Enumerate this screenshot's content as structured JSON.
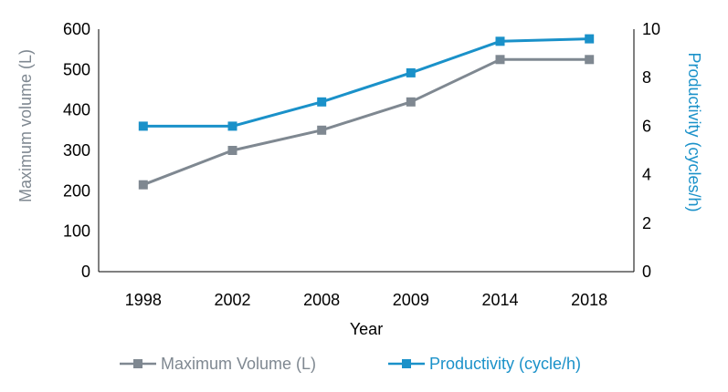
{
  "chart_data": {
    "type": "line",
    "categories": [
      "1998",
      "2002",
      "2008",
      "2009",
      "2014",
      "2018"
    ],
    "series": [
      {
        "name": "Maximum Volume (L)",
        "axis": "left",
        "marker": "square",
        "color": "#7f8891",
        "values": [
          215,
          300,
          350,
          420,
          525,
          525
        ]
      },
      {
        "name": "Productivity (cycle/h)",
        "axis": "right",
        "marker": "square",
        "color": "#1a91c9",
        "values": [
          6,
          6,
          7,
          8.2,
          9.5,
          9.6
        ]
      }
    ],
    "xlabel": "Year",
    "ylabel": "Maximum volume (L)",
    "y2label": "Productivity (cycles/h)",
    "ylim": [
      0,
      600
    ],
    "yticks": [
      "0",
      "100",
      "200",
      "300",
      "400",
      "500",
      "600"
    ],
    "y2lim": [
      0,
      10
    ],
    "y2ticks": [
      "0",
      "2",
      "4",
      "6",
      "8",
      "10"
    ],
    "grid": false,
    "legend_position": "bottom",
    "colors": {
      "left_axis_label": "#7f8891",
      "right_axis_label": "#1a91c9",
      "axis_line": "#000000",
      "text": "#000000"
    }
  }
}
